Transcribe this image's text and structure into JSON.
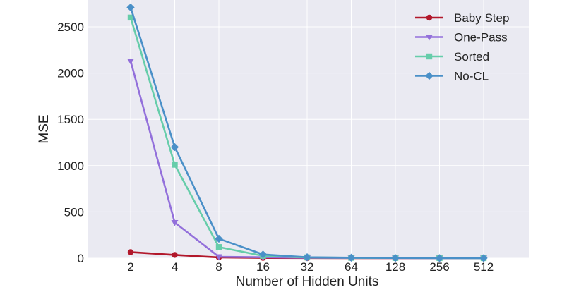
{
  "chart_data": {
    "type": "line",
    "x_scale": "log2",
    "categories": [
      "2",
      "4",
      "8",
      "16",
      "32",
      "64",
      "128",
      "256",
      "512"
    ],
    "x": [
      2,
      4,
      8,
      16,
      32,
      64,
      128,
      256,
      512
    ],
    "xlabel": "Number of Hidden Units",
    "ylabel": "MSE",
    "ylim": [
      0,
      2700
    ],
    "yticks": [
      0,
      500,
      1000,
      1500,
      2000,
      2500
    ],
    "grid": true,
    "legend_position": "top-right",
    "series": [
      {
        "name": "Baby Step",
        "color": "#b2182b",
        "marker": "circle",
        "values": [
          65,
          35,
          8,
          3,
          1,
          0.5,
          0.3,
          0.2,
          0.2
        ]
      },
      {
        "name": "One-Pass",
        "color": "#9370db",
        "marker": "triangle-down",
        "values": [
          2130,
          385,
          15,
          10,
          4,
          2,
          1,
          0.5,
          0.3
        ]
      },
      {
        "name": "Sorted",
        "color": "#66cdaa",
        "marker": "square",
        "values": [
          2600,
          1010,
          120,
          25,
          8,
          4,
          2,
          1,
          0.5
        ]
      },
      {
        "name": "No-CL",
        "color": "#4a90c8",
        "marker": "diamond",
        "values": [
          2710,
          1200,
          210,
          40,
          10,
          5,
          2,
          1,
          0.5
        ]
      }
    ]
  }
}
